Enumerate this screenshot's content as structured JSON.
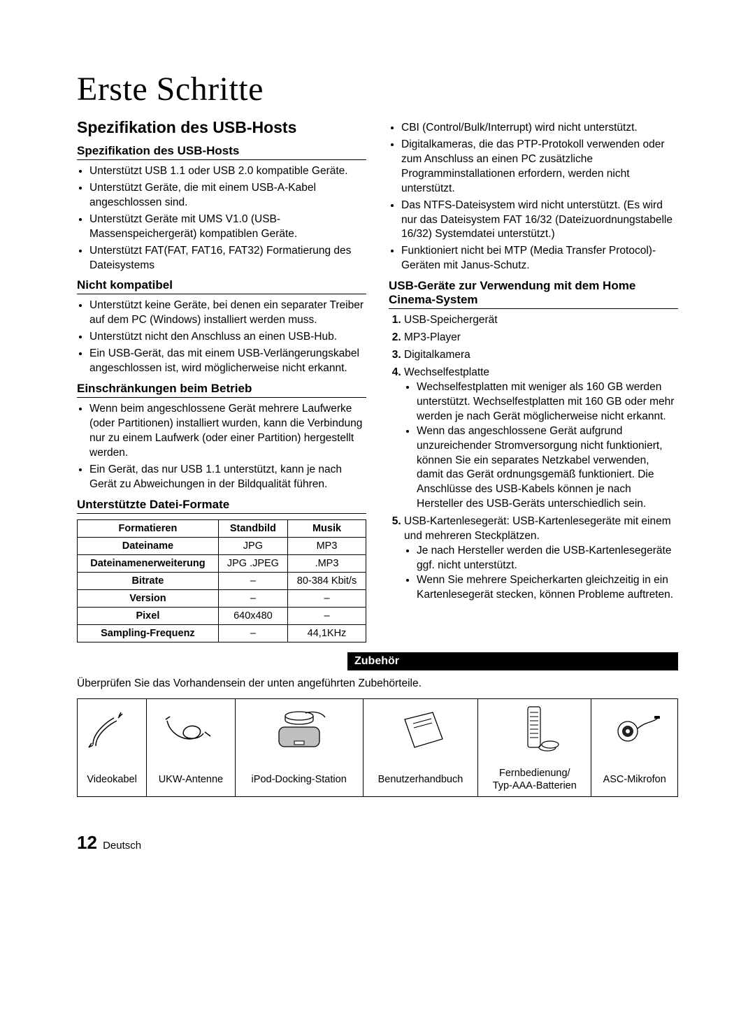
{
  "page_title": "Erste Schritte",
  "section_heading": "Spezifikation des USB-Hosts",
  "left": {
    "spec_heading": "Spezifikation des USB-Hosts",
    "spec_items": [
      "Unterstützt USB 1.1 oder USB 2.0 kompatible Geräte.",
      "Unterstützt Geräte, die mit einem USB-A-Kabel angeschlossen sind.",
      "Unterstützt Geräte mit UMS V1.0 (USB-Massenspeichergerät) kompatiblen Geräte.",
      "Unterstützt FAT(FAT, FAT16, FAT32) Formatierung des Dateisystems"
    ],
    "incompat_heading": "Nicht kompatibel",
    "incompat_items": [
      "Unterstützt keine Geräte, bei denen ein separater Treiber auf dem PC (Windows) installiert werden muss.",
      "Unterstützt nicht den Anschluss an einen USB-Hub.",
      "Ein USB-Gerät, das mit einem USB-Verlängerungskabel angeschlossen ist, wird möglicherweise nicht erkannt."
    ],
    "limit_heading": "Einschränkungen beim Betrieb",
    "limit_items": [
      "Wenn beim angeschlossene Gerät mehrere Laufwerke (oder Partitionen) installiert wurden, kann die Verbindung nur zu einem Laufwerk (oder einer Partition) hergestellt werden.",
      "Ein Gerät, das nur USB 1.1 unterstützt, kann je nach Gerät zu Abweichungen in der Bildqualität führen."
    ],
    "formats_heading": "Unterstützte Datei-Formate",
    "format_table": {
      "headers": [
        "Formatieren",
        "Standbild",
        "Musik"
      ],
      "rows": [
        [
          "Dateiname",
          "JPG",
          "MP3"
        ],
        [
          "Dateinamenerweiterung",
          "JPG .JPEG",
          ".MP3"
        ],
        [
          "Bitrate",
          "–",
          "80-384 Kbit/s"
        ],
        [
          "Version",
          "–",
          "–"
        ],
        [
          "Pixel",
          "640x480",
          "–"
        ],
        [
          "Sampling-Frequenz",
          "–",
          "44,1KHz"
        ]
      ]
    }
  },
  "right": {
    "top_bullets": [
      "CBI (Control/Bulk/Interrupt) wird nicht unterstützt.",
      "Digitalkameras, die das PTP-Protokoll verwenden oder zum Anschluss an einen PC zusätzliche Programminstallationen erfordern, werden nicht unterstützt.",
      "Das NTFS-Dateisystem wird nicht unterstützt. (Es wird nur das Dateisystem FAT 16/32 (Dateizuordnungstabelle 16/32) Systemdatei unterstützt.)",
      "Funktioniert nicht bei MTP (Media Transfer Protocol)-Geräten mit Janus-Schutz."
    ],
    "usb_devices_heading": "USB-Geräte zur Verwendung mit dem Home Cinema-System",
    "device_1": "USB-Speichergerät",
    "device_2": "MP3-Player",
    "device_3": "Digitalkamera",
    "device_4": "Wechselfestplatte",
    "device_4_sub": [
      "Wechselfestplatten mit weniger als 160 GB werden unterstützt. Wechselfestplatten mit 160 GB oder mehr werden je nach Gerät möglicherweise nicht erkannt.",
      "Wenn das angeschlossene Gerät aufgrund unzureichender Stromversorgung nicht funktioniert, können Sie ein separates Netzkabel verwenden, damit das Gerät ordnungsgemäß funktioniert. Die Anschlüsse des USB-Kabels können je nach Hersteller des USB-Geräts unterschiedlich sein."
    ],
    "device_5": "USB-Kartenlesegerät: USB-Kartenlesegeräte mit einem und mehreren Steckplätzen.",
    "device_5_sub": [
      "Je nach Hersteller werden die USB-Kartenlesegeräte ggf. nicht unterstützt.",
      "Wenn Sie mehrere Speicherkarten gleichzeitig in ein Kartenlesegerät stecken, können Probleme auftreten."
    ]
  },
  "zubehoer": {
    "bar": "Zubehör",
    "caption": "Überprüfen Sie das Vorhandensein der unten angeführten Zubehörteile.",
    "labels": [
      "Videokabel",
      "UKW-Antenne",
      "iPod-Docking-Station",
      "Benutzerhandbuch",
      "Fernbedienung/\nTyp-AAA-Batterien",
      "ASC-Mikrofon"
    ]
  },
  "footer": {
    "num": "12",
    "lang": "Deutsch"
  }
}
